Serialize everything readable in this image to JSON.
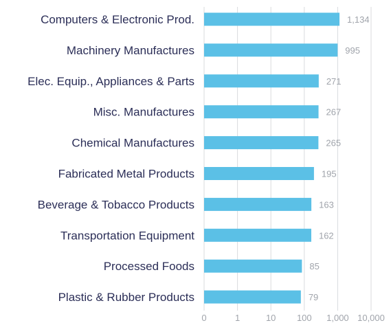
{
  "chart_data": {
    "type": "bar",
    "orientation": "horizontal",
    "x_scale": "log",
    "categories": [
      "Computers & Electronic Prod.",
      "Machinery Manufactures",
      "Elec. Equip., Appliances & Parts",
      "Misc. Manufactures",
      "Chemical Manufactures",
      "Fabricated Metal Products",
      "Beverage & Tobacco Products",
      "Transportation Equipment",
      "Processed Foods",
      "Plastic & Rubber Products"
    ],
    "values": [
      1134,
      995,
      271,
      267,
      265,
      195,
      163,
      162,
      85,
      79
    ],
    "value_labels": [
      "1,134",
      "995",
      "271",
      "267",
      "265",
      "195",
      "163",
      "162",
      "85",
      "79"
    ],
    "x_ticks": [
      0,
      1,
      10,
      100,
      1000,
      10000
    ],
    "x_tick_labels": [
      "0",
      "1",
      "10",
      "100",
      "1,000",
      "10,000"
    ],
    "xlim": [
      0,
      10000
    ],
    "grid": true,
    "title": "",
    "xlabel": "",
    "ylabel": ""
  },
  "colors": {
    "bar": "#5bc0e6",
    "category_text": "#2b2e57",
    "value_text": "#a0a4ab",
    "gridline": "#d9dbde"
  }
}
